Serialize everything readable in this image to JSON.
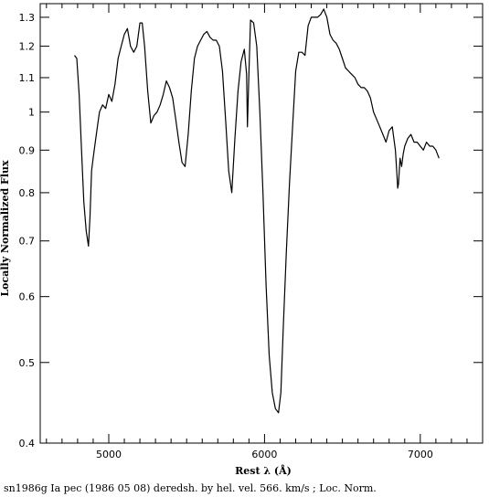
{
  "chart_data": {
    "type": "line",
    "xlabel": "Rest λ (Å)",
    "ylabel": "Locally Normalized Flux",
    "caption": "sn1986g Ia pec (1986 05 08) deredsh. by hel. vel.   566. km/s ;  Loc. Norm.",
    "xlim": [
      4560,
      7400
    ],
    "ylim": [
      0.4,
      1.35
    ],
    "y_scale": "log",
    "x_ticks": [
      {
        "value": 5000,
        "label": "5000"
      },
      {
        "value": 6000,
        "label": "6000"
      },
      {
        "value": 7000,
        "label": "7000"
      }
    ],
    "x_minor_ticks": [
      4600,
      4700,
      4800,
      4900,
      5100,
      5200,
      5300,
      5400,
      5500,
      5600,
      5700,
      5800,
      5900,
      6100,
      6200,
      6300,
      6400,
      6500,
      6600,
      6700,
      6800,
      6900,
      7100,
      7200,
      7300
    ],
    "y_ticks": [
      {
        "value": 0.4,
        "label": "0.4"
      },
      {
        "value": 0.5,
        "label": "0.5"
      },
      {
        "value": 0.6,
        "label": "0.6"
      },
      {
        "value": 0.7,
        "label": "0.7"
      },
      {
        "value": 0.8,
        "label": "0.8"
      },
      {
        "value": 0.9,
        "label": "0.9"
      },
      {
        "value": 1.0,
        "label": "1"
      },
      {
        "value": 1.1,
        "label": "1.1"
      },
      {
        "value": 1.2,
        "label": "1.2"
      },
      {
        "value": 1.3,
        "label": "1.3"
      }
    ],
    "series": [
      {
        "color": "#000000",
        "x": [
          4780,
          4795,
          4810,
          4825,
          4840,
          4855,
          4870,
          4880,
          4890,
          4900,
          4920,
          4940,
          4960,
          4980,
          5000,
          5020,
          5040,
          5060,
          5080,
          5100,
          5120,
          5140,
          5160,
          5180,
          5200,
          5215,
          5230,
          5250,
          5270,
          5290,
          5310,
          5330,
          5350,
          5370,
          5390,
          5410,
          5430,
          5450,
          5470,
          5490,
          5510,
          5530,
          5550,
          5570,
          5590,
          5610,
          5630,
          5650,
          5670,
          5690,
          5710,
          5730,
          5750,
          5770,
          5790,
          5810,
          5830,
          5850,
          5870,
          5885,
          5890,
          5900,
          5910,
          5930,
          5950,
          5970,
          5990,
          6010,
          6030,
          6050,
          6070,
          6090,
          6105,
          6120,
          6140,
          6160,
          6180,
          6200,
          6220,
          6240,
          6260,
          6280,
          6300,
          6320,
          6340,
          6360,
          6380,
          6400,
          6420,
          6440,
          6460,
          6480,
          6500,
          6520,
          6540,
          6560,
          6580,
          6600,
          6620,
          6640,
          6660,
          6680,
          6700,
          6720,
          6740,
          6760,
          6780,
          6800,
          6820,
          6840,
          6850,
          6855,
          6860,
          6870,
          6880,
          6890,
          6900,
          6920,
          6940,
          6960,
          6980,
          7000,
          7020,
          7040,
          7060,
          7080,
          7100,
          7120
        ],
        "y": [
          1.17,
          1.16,
          1.05,
          0.9,
          0.78,
          0.72,
          0.69,
          0.75,
          0.85,
          0.88,
          0.94,
          1.0,
          1.02,
          1.01,
          1.05,
          1.03,
          1.08,
          1.16,
          1.2,
          1.24,
          1.26,
          1.2,
          1.18,
          1.2,
          1.28,
          1.28,
          1.2,
          1.06,
          0.97,
          0.99,
          1.0,
          1.02,
          1.05,
          1.09,
          1.07,
          1.04,
          0.98,
          0.92,
          0.87,
          0.86,
          0.94,
          1.06,
          1.16,
          1.2,
          1.22,
          1.24,
          1.25,
          1.23,
          1.22,
          1.22,
          1.2,
          1.12,
          0.98,
          0.85,
          0.8,
          0.93,
          1.06,
          1.15,
          1.19,
          1.11,
          0.96,
          1.12,
          1.29,
          1.28,
          1.2,
          1.0,
          0.8,
          0.62,
          0.51,
          0.46,
          0.44,
          0.435,
          0.46,
          0.55,
          0.68,
          0.82,
          0.96,
          1.12,
          1.18,
          1.18,
          1.17,
          1.27,
          1.3,
          1.3,
          1.3,
          1.31,
          1.33,
          1.3,
          1.24,
          1.22,
          1.21,
          1.19,
          1.16,
          1.13,
          1.12,
          1.11,
          1.1,
          1.08,
          1.07,
          1.07,
          1.06,
          1.04,
          1.0,
          0.98,
          0.96,
          0.94,
          0.92,
          0.95,
          0.96,
          0.9,
          0.84,
          0.81,
          0.82,
          0.88,
          0.86,
          0.89,
          0.91,
          0.93,
          0.94,
          0.92,
          0.92,
          0.91,
          0.9,
          0.92,
          0.91,
          0.91,
          0.9,
          0.88
        ]
      }
    ]
  }
}
